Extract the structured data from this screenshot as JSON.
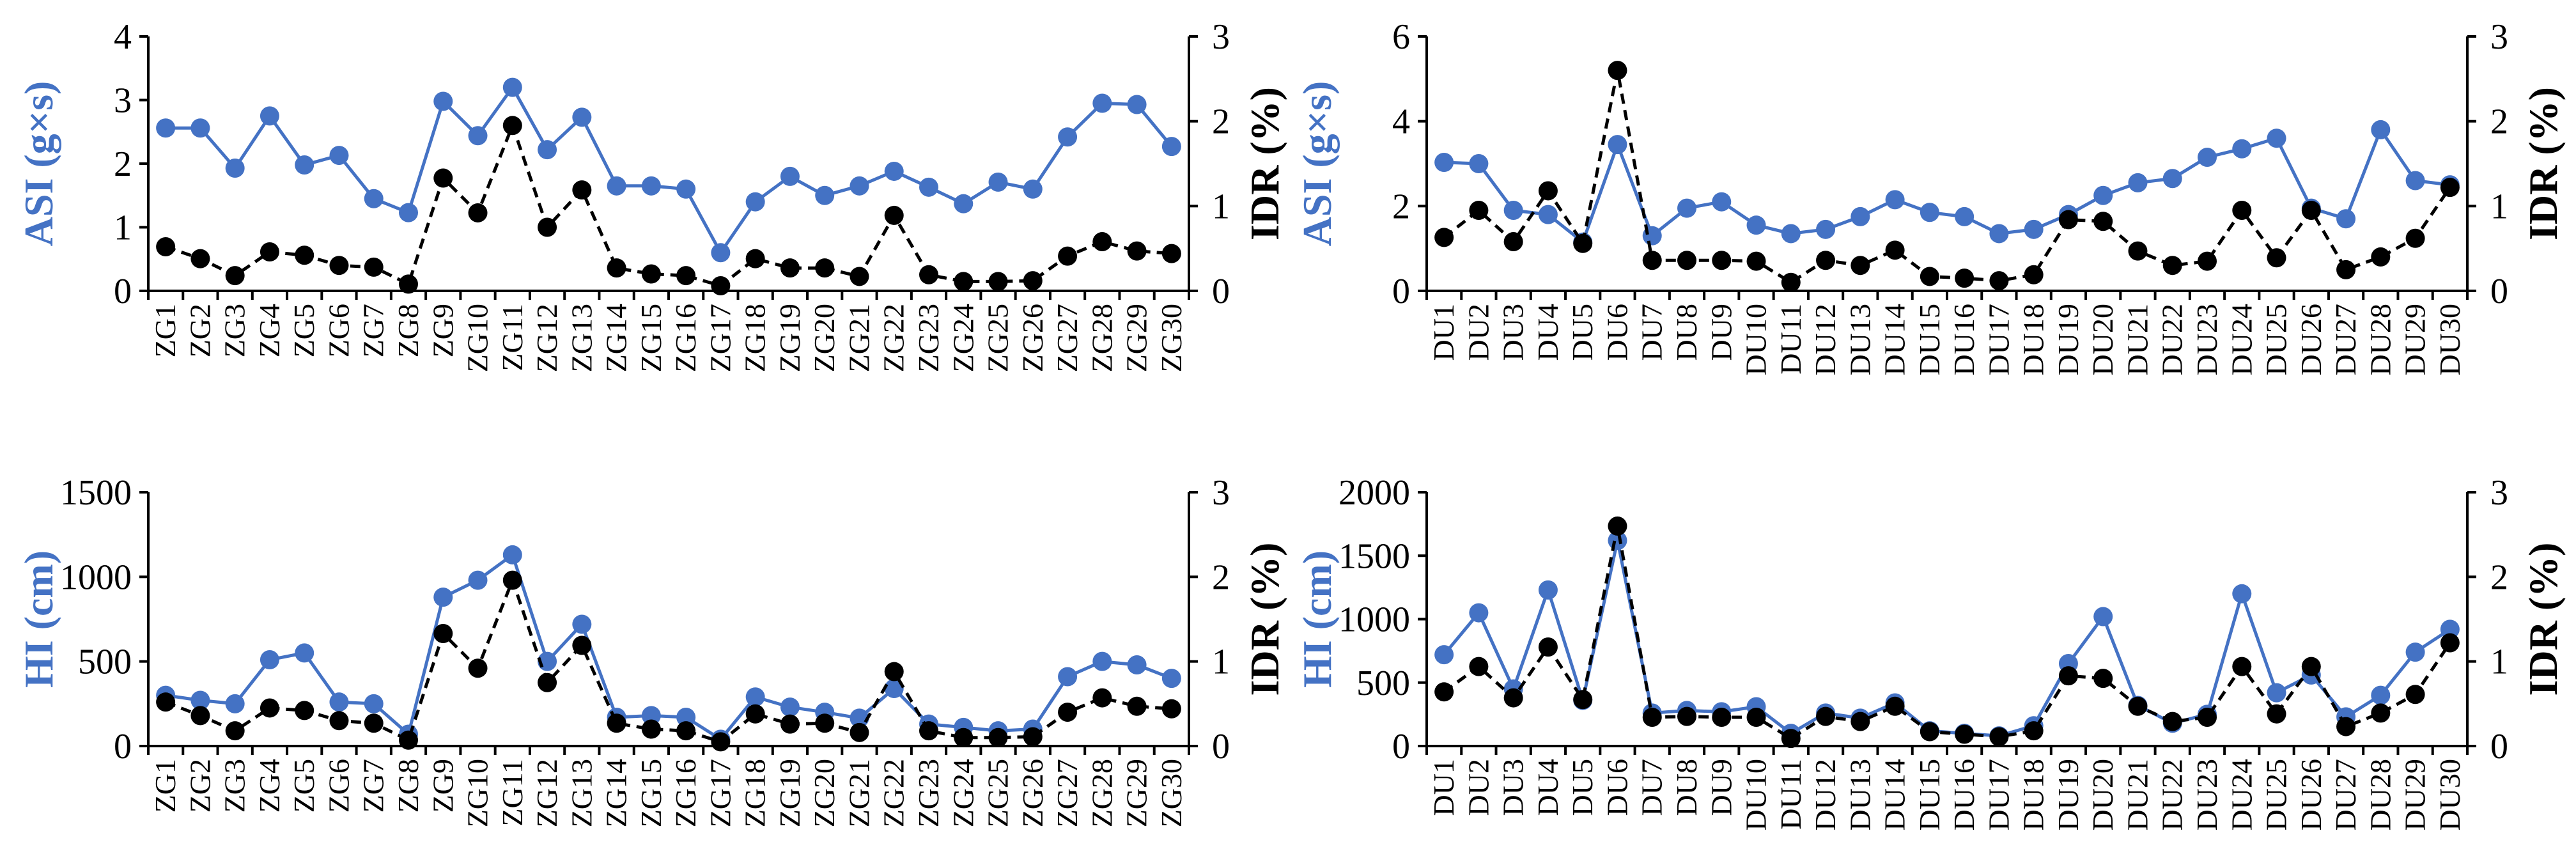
{
  "colors": {
    "primary": "#4472C4",
    "secondary": "#000000",
    "axis": "#000000"
  },
  "chart_data": [
    {
      "type": "line",
      "title": "",
      "categories": [
        "ZG1",
        "ZG2",
        "ZG3",
        "ZG4",
        "ZG5",
        "ZG6",
        "ZG7",
        "ZG8",
        "ZG9",
        "ZG10",
        "ZG11",
        "ZG12",
        "ZG13",
        "ZG14",
        "ZG15",
        "ZG16",
        "ZG17",
        "ZG18",
        "ZG19",
        "ZG20",
        "ZG21",
        "ZG22",
        "ZG23",
        "ZG24",
        "ZG25",
        "ZG26",
        "ZG27",
        "ZG28",
        "ZG29",
        "ZG30"
      ],
      "ylabel": "ASI (g×s)",
      "ylim": [
        0,
        4
      ],
      "yticks": [
        "0",
        "1",
        "2",
        "3",
        "4"
      ],
      "y2label": "IDR (%)",
      "y2lim": [
        0,
        3
      ],
      "y2ticks": [
        "0",
        "1",
        "2",
        "3"
      ],
      "series": [
        {
          "name": "ASI",
          "axis": "left",
          "style": "solid",
          "color": "#4472C4",
          "values": [
            2.56,
            2.56,
            1.93,
            2.75,
            1.98,
            2.13,
            1.45,
            1.23,
            2.98,
            2.44,
            3.2,
            2.22,
            2.73,
            1.65,
            1.65,
            1.6,
            0.6,
            1.4,
            1.8,
            1.5,
            1.65,
            1.88,
            1.63,
            1.37,
            1.71,
            1.6,
            2.42,
            2.95,
            2.93,
            2.27
          ]
        },
        {
          "name": "IDR",
          "axis": "right",
          "style": "dashed",
          "color": "#000000",
          "values": [
            0.52,
            0.38,
            0.18,
            0.46,
            0.42,
            0.3,
            0.28,
            0.08,
            1.33,
            0.92,
            1.95,
            0.75,
            1.19,
            0.27,
            0.2,
            0.18,
            0.06,
            0.38,
            0.27,
            0.27,
            0.17,
            0.89,
            0.19,
            0.11,
            0.11,
            0.12,
            0.41,
            0.58,
            0.47,
            0.44
          ]
        }
      ]
    },
    {
      "type": "line",
      "title": "",
      "categories": [
        "DU1",
        "DU2",
        "DU3",
        "DU4",
        "DU5",
        "DU6",
        "DU7",
        "DU8",
        "DU9",
        "DU10",
        "DU11",
        "DU12",
        "DU13",
        "DU14",
        "DU15",
        "DU16",
        "DU17",
        "DU18",
        "DU19",
        "DU20",
        "DU21",
        "DU22",
        "DU23",
        "DU24",
        "DU25",
        "DU26",
        "DU27",
        "DU28",
        "DU29",
        "DU30"
      ],
      "ylabel": "ASI (g×s)",
      "ylim": [
        0,
        6
      ],
      "yticks": [
        "0",
        "2",
        "4",
        "6"
      ],
      "y2label": "IDR (%)",
      "y2lim": [
        0,
        3
      ],
      "y2ticks": [
        "0",
        "1",
        "2",
        "3"
      ],
      "series": [
        {
          "name": "ASI",
          "axis": "left",
          "style": "solid",
          "color": "#4472C4",
          "values": [
            3.03,
            3.0,
            1.9,
            1.8,
            1.15,
            3.45,
            1.3,
            1.95,
            2.1,
            1.55,
            1.35,
            1.45,
            1.75,
            2.15,
            1.85,
            1.75,
            1.35,
            1.45,
            1.8,
            2.25,
            2.55,
            2.65,
            3.15,
            3.35,
            3.6,
            1.95,
            1.7,
            3.8,
            2.6,
            2.5
          ]
        },
        {
          "name": "IDR",
          "axis": "right",
          "style": "dashed",
          "color": "#000000",
          "values": [
            0.63,
            0.95,
            0.58,
            1.18,
            0.56,
            2.6,
            0.36,
            0.36,
            0.36,
            0.35,
            0.1,
            0.36,
            0.3,
            0.48,
            0.17,
            0.15,
            0.12,
            0.19,
            0.84,
            0.82,
            0.47,
            0.3,
            0.35,
            0.95,
            0.39,
            0.95,
            0.25,
            0.4,
            0.62,
            1.22
          ]
        }
      ]
    },
    {
      "type": "line",
      "title": "",
      "categories": [
        "ZG1",
        "ZG2",
        "ZG3",
        "ZG4",
        "ZG5",
        "ZG6",
        "ZG7",
        "ZG8",
        "ZG9",
        "ZG10",
        "ZG11",
        "ZG12",
        "ZG13",
        "ZG14",
        "ZG15",
        "ZG16",
        "ZG17",
        "ZG18",
        "ZG19",
        "ZG20",
        "ZG21",
        "ZG22",
        "ZG23",
        "ZG24",
        "ZG25",
        "ZG26",
        "ZG27",
        "ZG28",
        "ZG29",
        "ZG30"
      ],
      "ylabel": "HI (cm)",
      "ylim": [
        0,
        1500
      ],
      "yticks": [
        "0",
        "500",
        "1000",
        "1500"
      ],
      "y2label": "IDR (%)",
      "y2lim": [
        0,
        3
      ],
      "y2ticks": [
        "0",
        "1",
        "2",
        "3"
      ],
      "series": [
        {
          "name": "HI",
          "axis": "left",
          "style": "solid",
          "color": "#4472C4",
          "values": [
            300,
            270,
            250,
            510,
            550,
            260,
            250,
            70,
            880,
            980,
            1130,
            500,
            720,
            170,
            180,
            170,
            40,
            290,
            230,
            200,
            165,
            340,
            130,
            110,
            90,
            100,
            410,
            500,
            480,
            400
          ]
        },
        {
          "name": "IDR",
          "axis": "right",
          "style": "dashed",
          "color": "#000000",
          "values": [
            0.52,
            0.36,
            0.18,
            0.45,
            0.42,
            0.3,
            0.27,
            0.07,
            1.33,
            0.92,
            1.96,
            0.75,
            1.19,
            0.27,
            0.2,
            0.18,
            0.05,
            0.38,
            0.26,
            0.27,
            0.16,
            0.88,
            0.18,
            0.1,
            0.1,
            0.11,
            0.4,
            0.57,
            0.47,
            0.44
          ]
        }
      ]
    },
    {
      "type": "line",
      "title": "",
      "categories": [
        "DU1",
        "DU2",
        "DU3",
        "DU4",
        "DU5",
        "DU6",
        "DU7",
        "DU8",
        "DU9",
        "DU10",
        "DU11",
        "DU12",
        "DU13",
        "DU14",
        "DU15",
        "DU16",
        "DU17",
        "DU18",
        "DU19",
        "DU20",
        "DU21",
        "DU22",
        "DU23",
        "DU24",
        "DU25",
        "DU26",
        "DU27",
        "DU28",
        "DU29",
        "DU30"
      ],
      "ylabel": "HI (cm)",
      "ylim": [
        0,
        2000
      ],
      "yticks": [
        "0",
        "500",
        "1000",
        "1500",
        "2000"
      ],
      "y2label": "IDR (%)",
      "y2lim": [
        0,
        3
      ],
      "y2ticks": [
        "0",
        "1",
        "2",
        "3"
      ],
      "series": [
        {
          "name": "HI",
          "axis": "left",
          "style": "solid",
          "color": "#4472C4",
          "values": [
            720,
            1050,
            450,
            1230,
            360,
            1620,
            260,
            280,
            270,
            310,
            100,
            260,
            220,
            340,
            120,
            100,
            80,
            160,
            650,
            1020,
            320,
            180,
            250,
            1200,
            420,
            560,
            230,
            400,
            740,
            920
          ]
        },
        {
          "name": "IDR",
          "axis": "right",
          "style": "dashed",
          "color": "#000000",
          "values": [
            0.64,
            0.94,
            0.57,
            1.17,
            0.55,
            2.6,
            0.34,
            0.35,
            0.34,
            0.34,
            0.09,
            0.35,
            0.29,
            0.47,
            0.17,
            0.14,
            0.11,
            0.18,
            0.83,
            0.8,
            0.47,
            0.29,
            0.34,
            0.94,
            0.38,
            0.94,
            0.23,
            0.39,
            0.61,
            1.22
          ]
        }
      ]
    }
  ]
}
